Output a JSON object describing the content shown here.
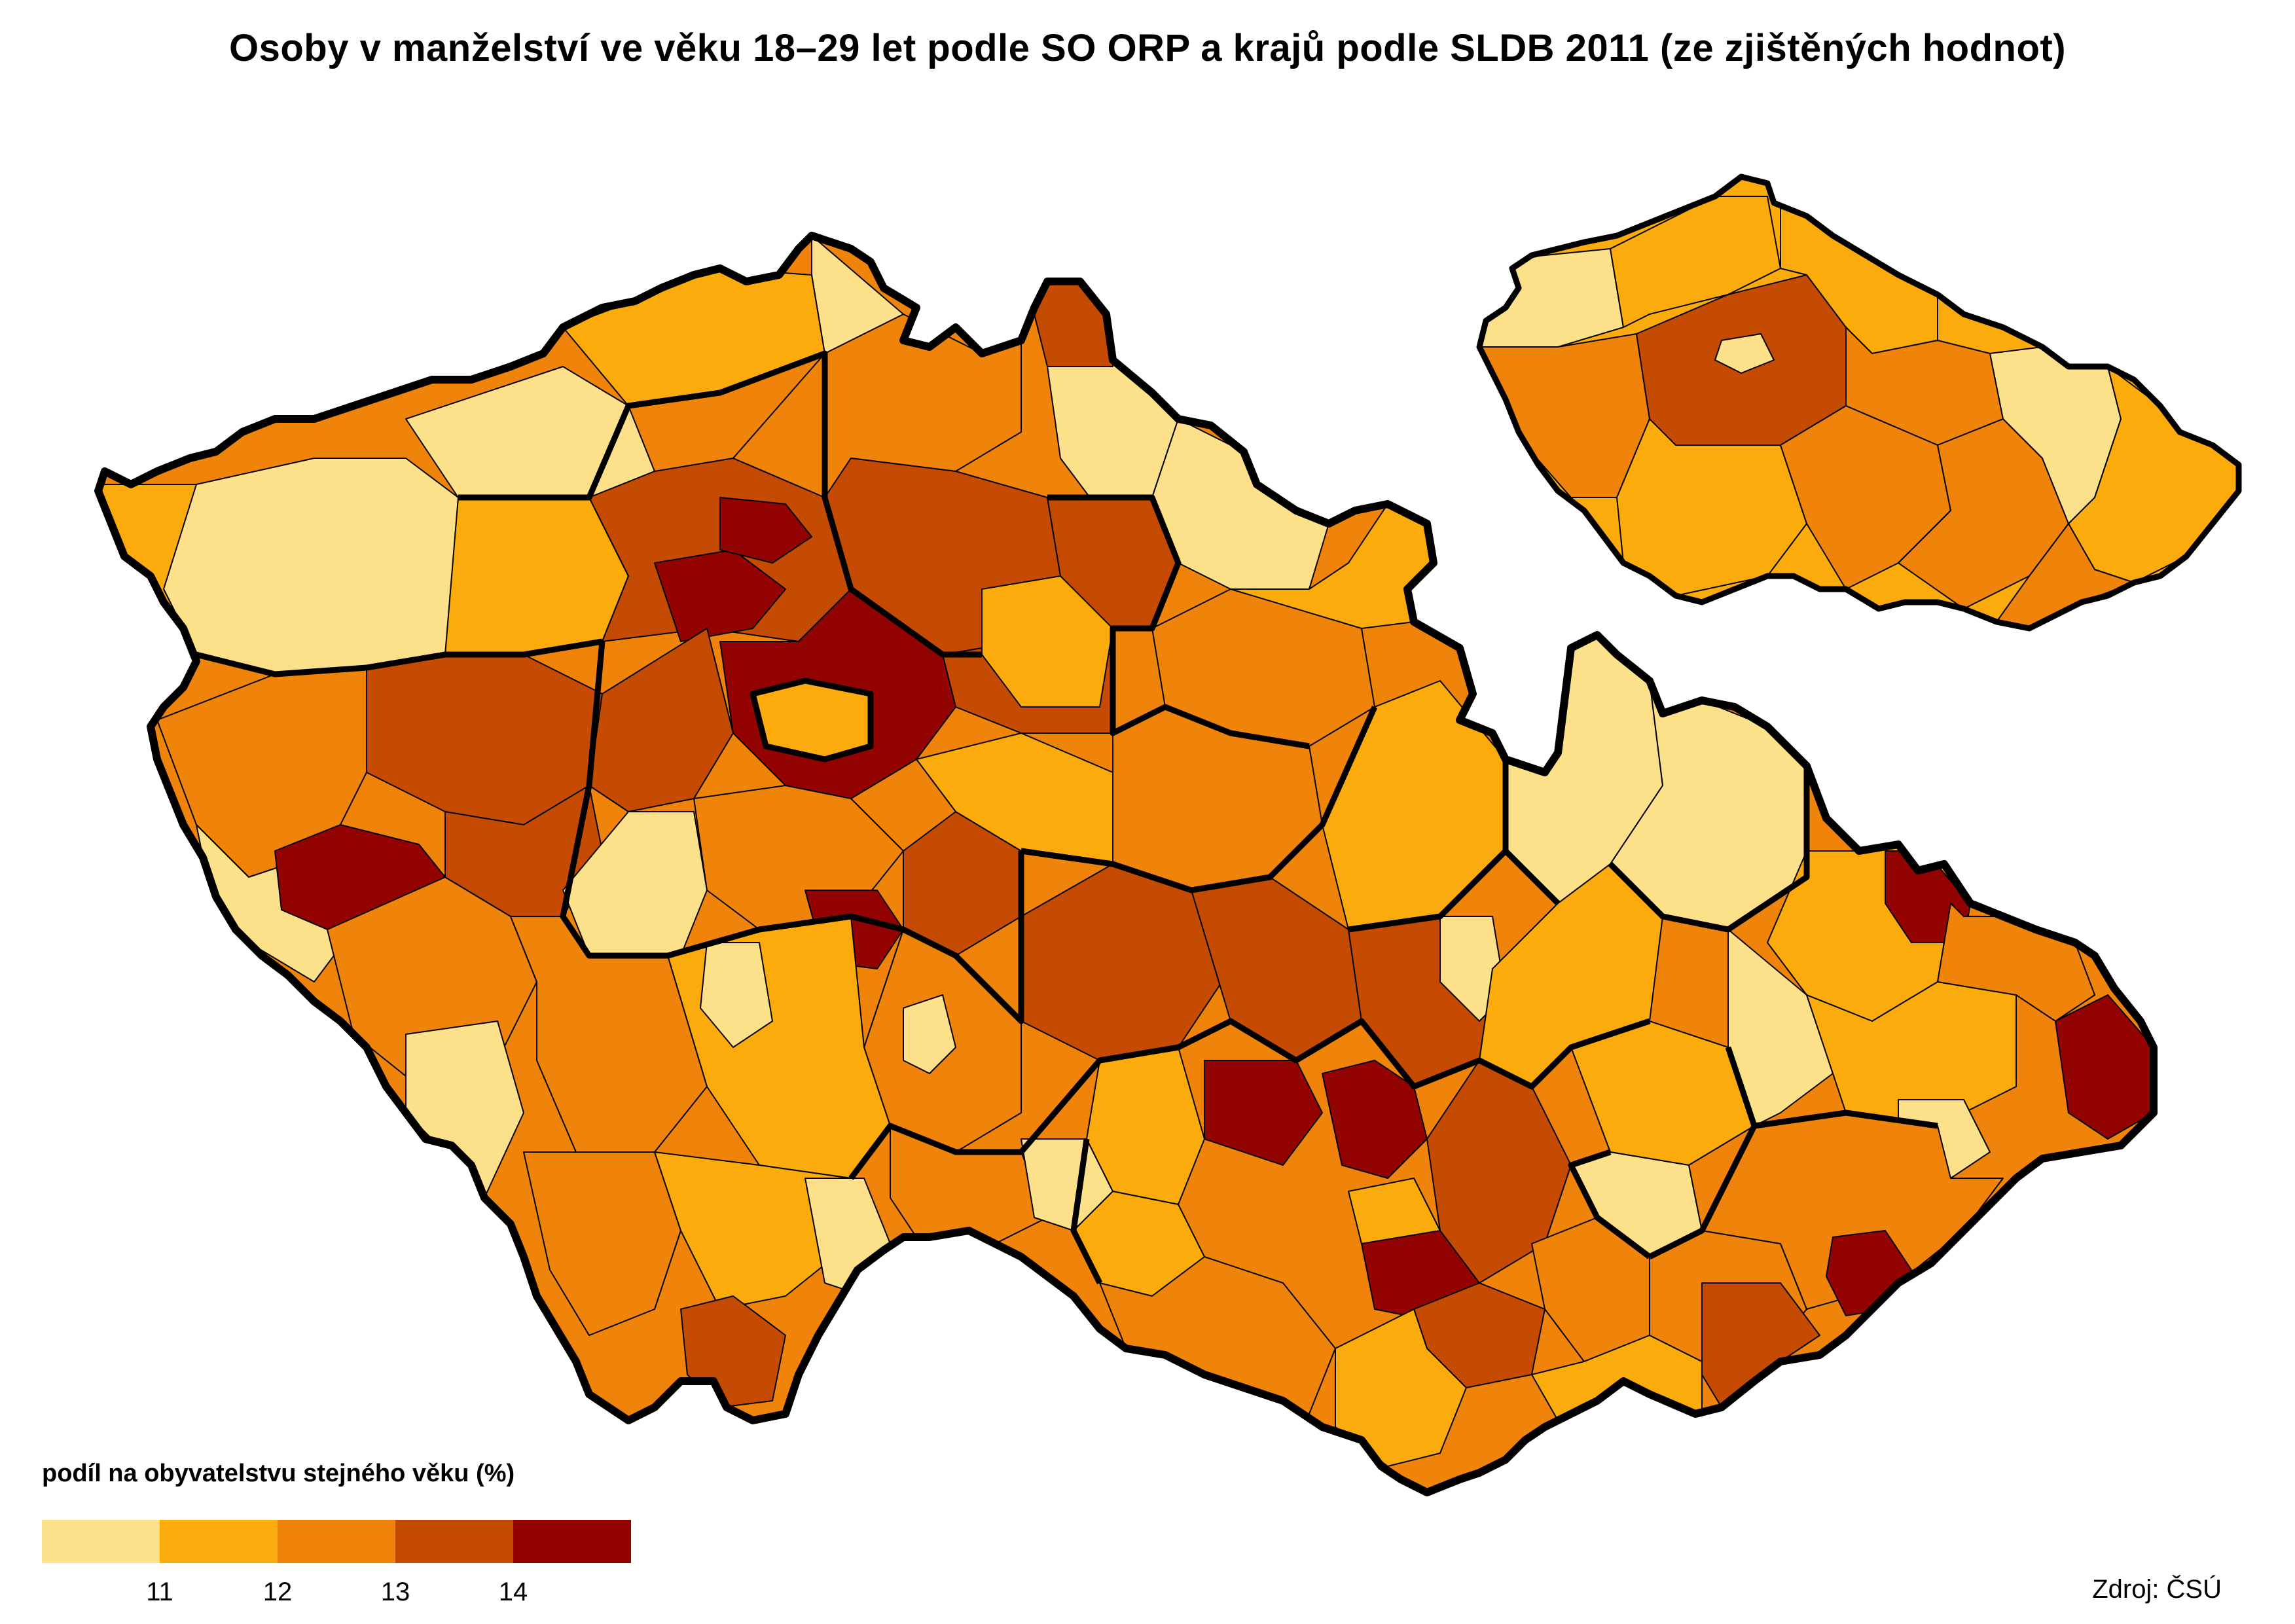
{
  "title": "Osoby v manželství ve věku 18–29 let podle SO ORP a krajů podle SLDB 2011 (ze zjištěných hodnot)",
  "legend": {
    "title": "podíl na obyvatelstvu stejného věku (%)",
    "colors": [
      "#fde08a",
      "#fbab0b",
      "#f08309",
      "#c54b02",
      "#920302"
    ],
    "ticks": [
      "11",
      "12",
      "13",
      "14"
    ]
  },
  "source": "Zdroj: ČSÚ",
  "map": {
    "type": "choropleth",
    "units": "SO ORP",
    "regions": "kraje",
    "inset": "kraje"
  }
}
